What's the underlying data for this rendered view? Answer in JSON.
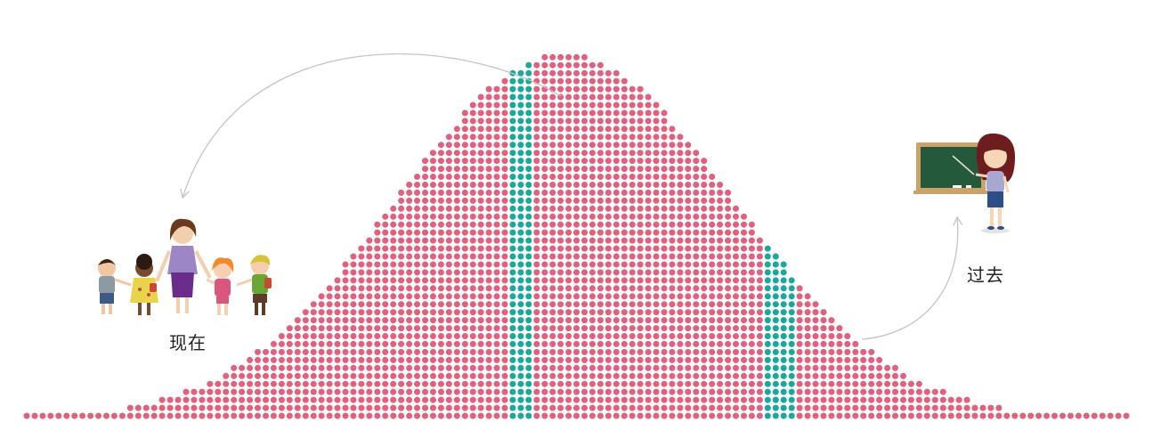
{
  "labels": {
    "now": "现在",
    "past": "过去"
  },
  "colors": {
    "dot_default": "#e0607e",
    "dot_highlight": "#1aa89a",
    "arrow": "#c4c4c4"
  },
  "icons": {
    "now": "teacher-with-children-icon",
    "past": "teacher-at-chalkboard-icon"
  },
  "dot_distribution": {
    "highlight_columns": [
      [
        61,
        63
      ],
      [
        93,
        96
      ]
    ]
  }
}
